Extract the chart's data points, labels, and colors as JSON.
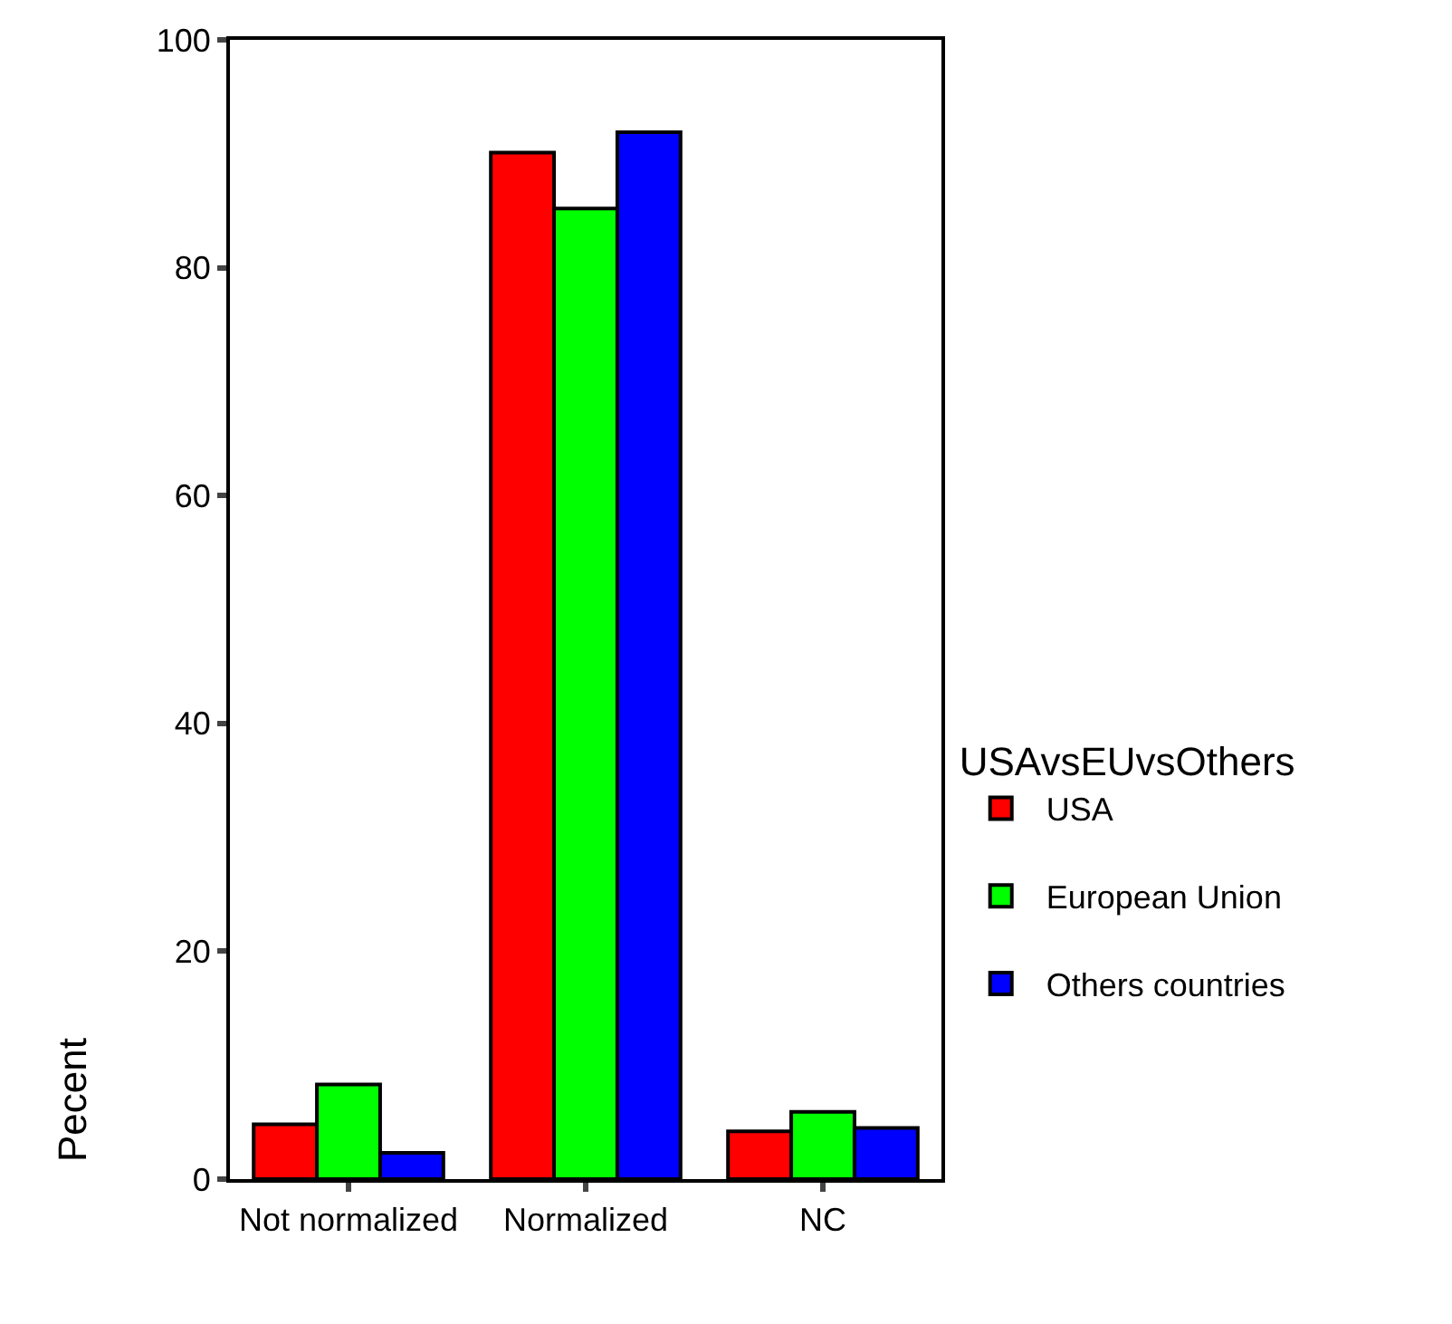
{
  "chart_data": {
    "type": "bar",
    "categories": [
      "Not normalized",
      "Normalized",
      "NC"
    ],
    "ylabel": "Pecent",
    "legend_title": "USAvsEUvsOthers",
    "ylim": [
      0,
      100
    ],
    "yticks": [
      0,
      20,
      40,
      60,
      80,
      100
    ],
    "legend": "right",
    "series": [
      {
        "name": "USA",
        "color": "#ff0000",
        "values": [
          4.8,
          90.1,
          4.2
        ]
      },
      {
        "name": "European Union",
        "color": "#00ff00",
        "values": [
          8.3,
          85.2,
          5.9
        ]
      },
      {
        "name": "Others countries",
        "color": "#0000ff",
        "values": [
          2.3,
          91.9,
          4.5
        ]
      }
    ]
  }
}
